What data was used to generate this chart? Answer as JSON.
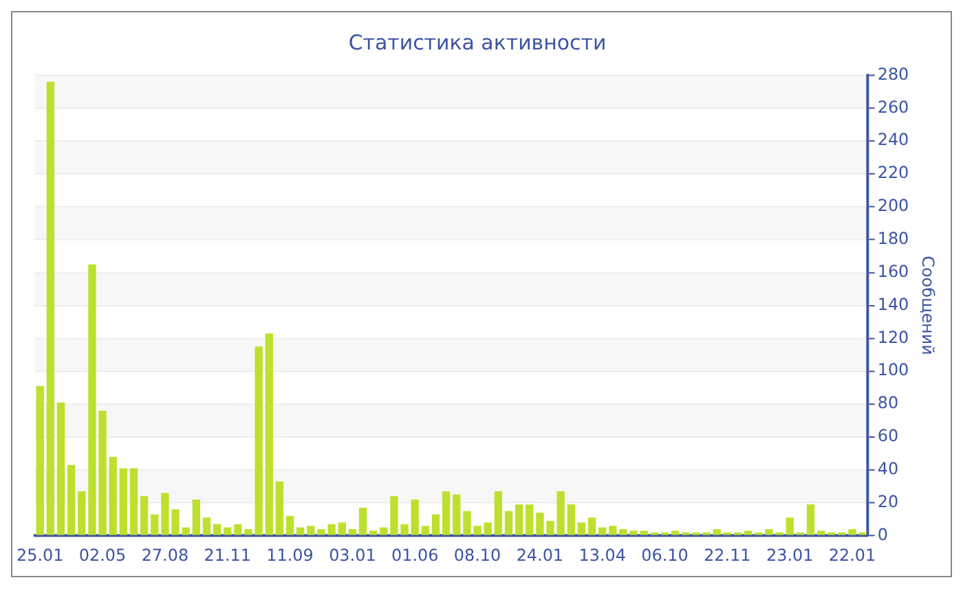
{
  "chart_data": {
    "type": "bar",
    "title": "Статистика активности",
    "ylabel": "Сообщений",
    "categories": [
      "25.01",
      null,
      null,
      null,
      null,
      null,
      "02.05",
      null,
      null,
      null,
      null,
      null,
      "27.08",
      null,
      null,
      null,
      null,
      null,
      "21.11",
      null,
      null,
      null,
      null,
      null,
      "11.09",
      null,
      null,
      null,
      null,
      null,
      "03.01",
      null,
      null,
      null,
      null,
      null,
      "01.06",
      null,
      null,
      null,
      null,
      null,
      "08.10",
      null,
      null,
      null,
      null,
      null,
      "24.01",
      null,
      null,
      null,
      null,
      null,
      "13.04",
      null,
      null,
      null,
      null,
      null,
      "06.10",
      null,
      null,
      null,
      null,
      null,
      "22.11",
      null,
      null,
      null,
      null,
      null,
      "23.01",
      null,
      null,
      null,
      null,
      null,
      "22.01",
      null
    ],
    "series": [
      {
        "color": "#bde02e",
        "values": [
          91,
          276,
          81,
          43,
          27,
          165,
          76,
          48,
          41,
          41,
          24,
          13,
          26,
          16,
          5,
          22,
          11,
          7,
          5,
          7,
          4,
          115,
          123,
          33,
          12,
          5,
          6,
          4,
          7,
          8,
          4,
          17,
          3,
          5,
          24,
          7,
          22,
          6,
          13,
          27,
          25,
          15,
          6,
          8,
          27,
          15,
          19,
          19,
          14,
          9,
          27,
          19,
          8,
          11,
          5,
          6,
          4,
          3,
          3,
          2,
          2,
          3,
          2,
          2,
          2,
          4,
          2,
          2,
          3,
          2,
          4,
          2,
          11,
          2,
          19,
          3,
          2,
          2,
          4,
          2
        ]
      }
    ],
    "ylim": [
      0,
      280
    ],
    "yticks": [
      0,
      20,
      40,
      60,
      80,
      100,
      120,
      140,
      160,
      180,
      200,
      220,
      240,
      260,
      280
    ],
    "grid": "y",
    "legend": false
  }
}
